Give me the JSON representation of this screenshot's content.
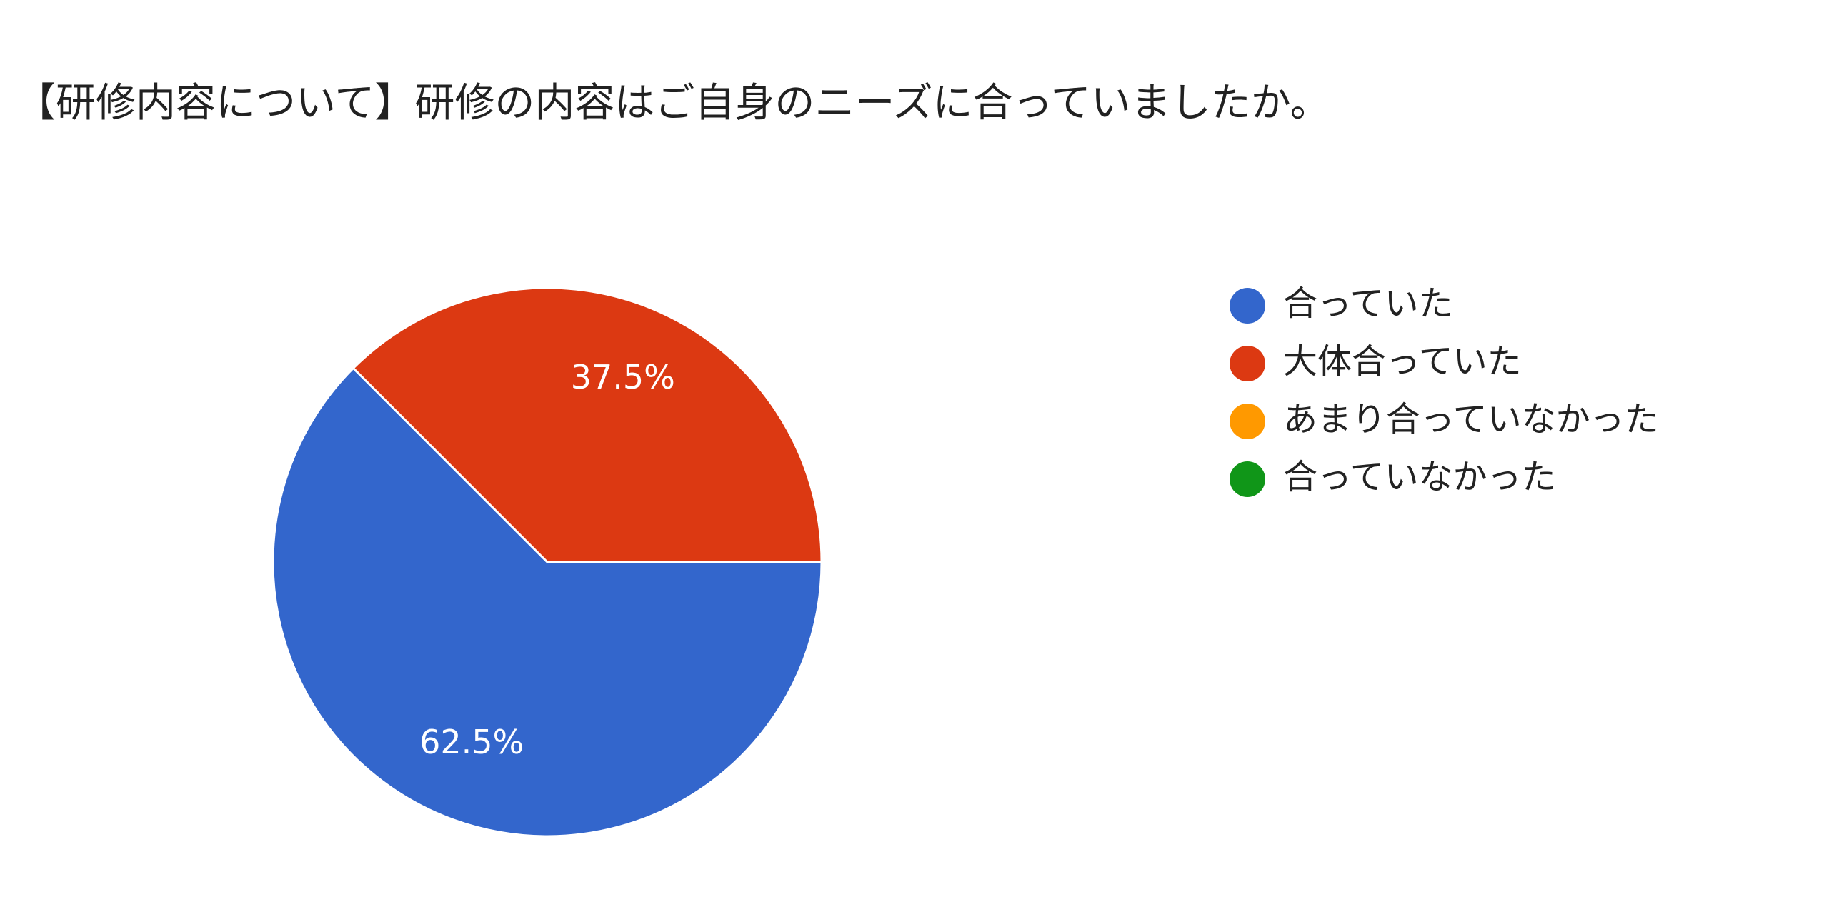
{
  "chart_data": {
    "type": "pie",
    "title": "【研修内容について】研修の内容はご自身のニーズに合っていましたか。",
    "categories": [
      "合っていた",
      "大体合っていた",
      "あまり合っていなかった",
      "合っていなかった"
    ],
    "values": [
      62.5,
      37.5,
      0,
      0
    ],
    "value_labels": [
      "62.5%",
      "37.5%",
      null,
      null
    ],
    "colors": [
      "#3366cc",
      "#dc3912",
      "#ff9900",
      "#109618"
    ],
    "legend": "right"
  }
}
